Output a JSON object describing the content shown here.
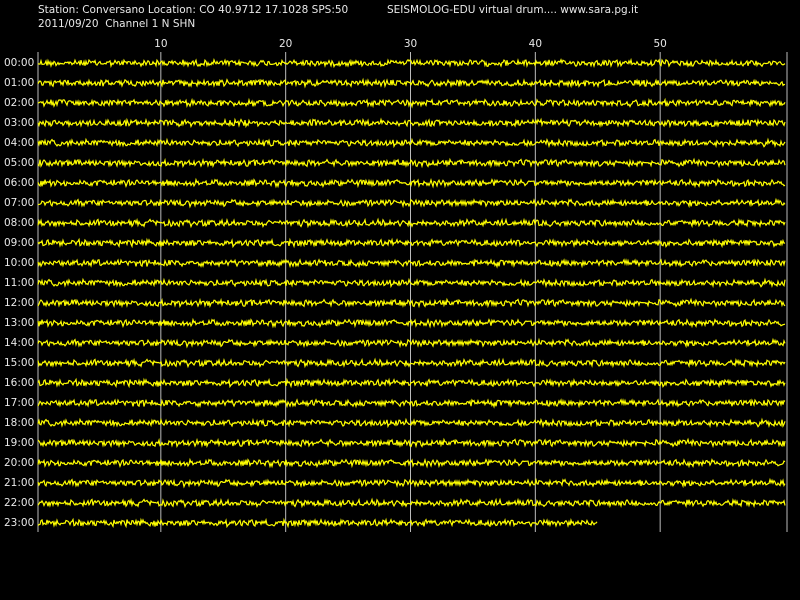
{
  "chart_data": {
    "type": "drum",
    "title": "Station: Conversano Location: CO 40.9712 17.1028 SPS:50",
    "subtitle": "2011/09/20  Channel 1 N SHN",
    "annotation": "SEISMOLOG-EDU virtual drum.... www.sara.pg.it",
    "xlim": [
      0,
      60
    ],
    "xticks": [
      10,
      20,
      30,
      40,
      50
    ],
    "categories": [
      "00:00",
      "01:00",
      "02:00",
      "03:00",
      "04:00",
      "05:00",
      "06:00",
      "07:00",
      "08:00",
      "09:00",
      "10:00",
      "11:00",
      "12:00",
      "13:00",
      "14:00",
      "15:00",
      "16:00",
      "17:00",
      "18:00",
      "19:00",
      "20:00",
      "21:00",
      "22:00",
      "23:00"
    ],
    "last_trace_end": 45,
    "color": "#ffff00",
    "grid": true
  }
}
